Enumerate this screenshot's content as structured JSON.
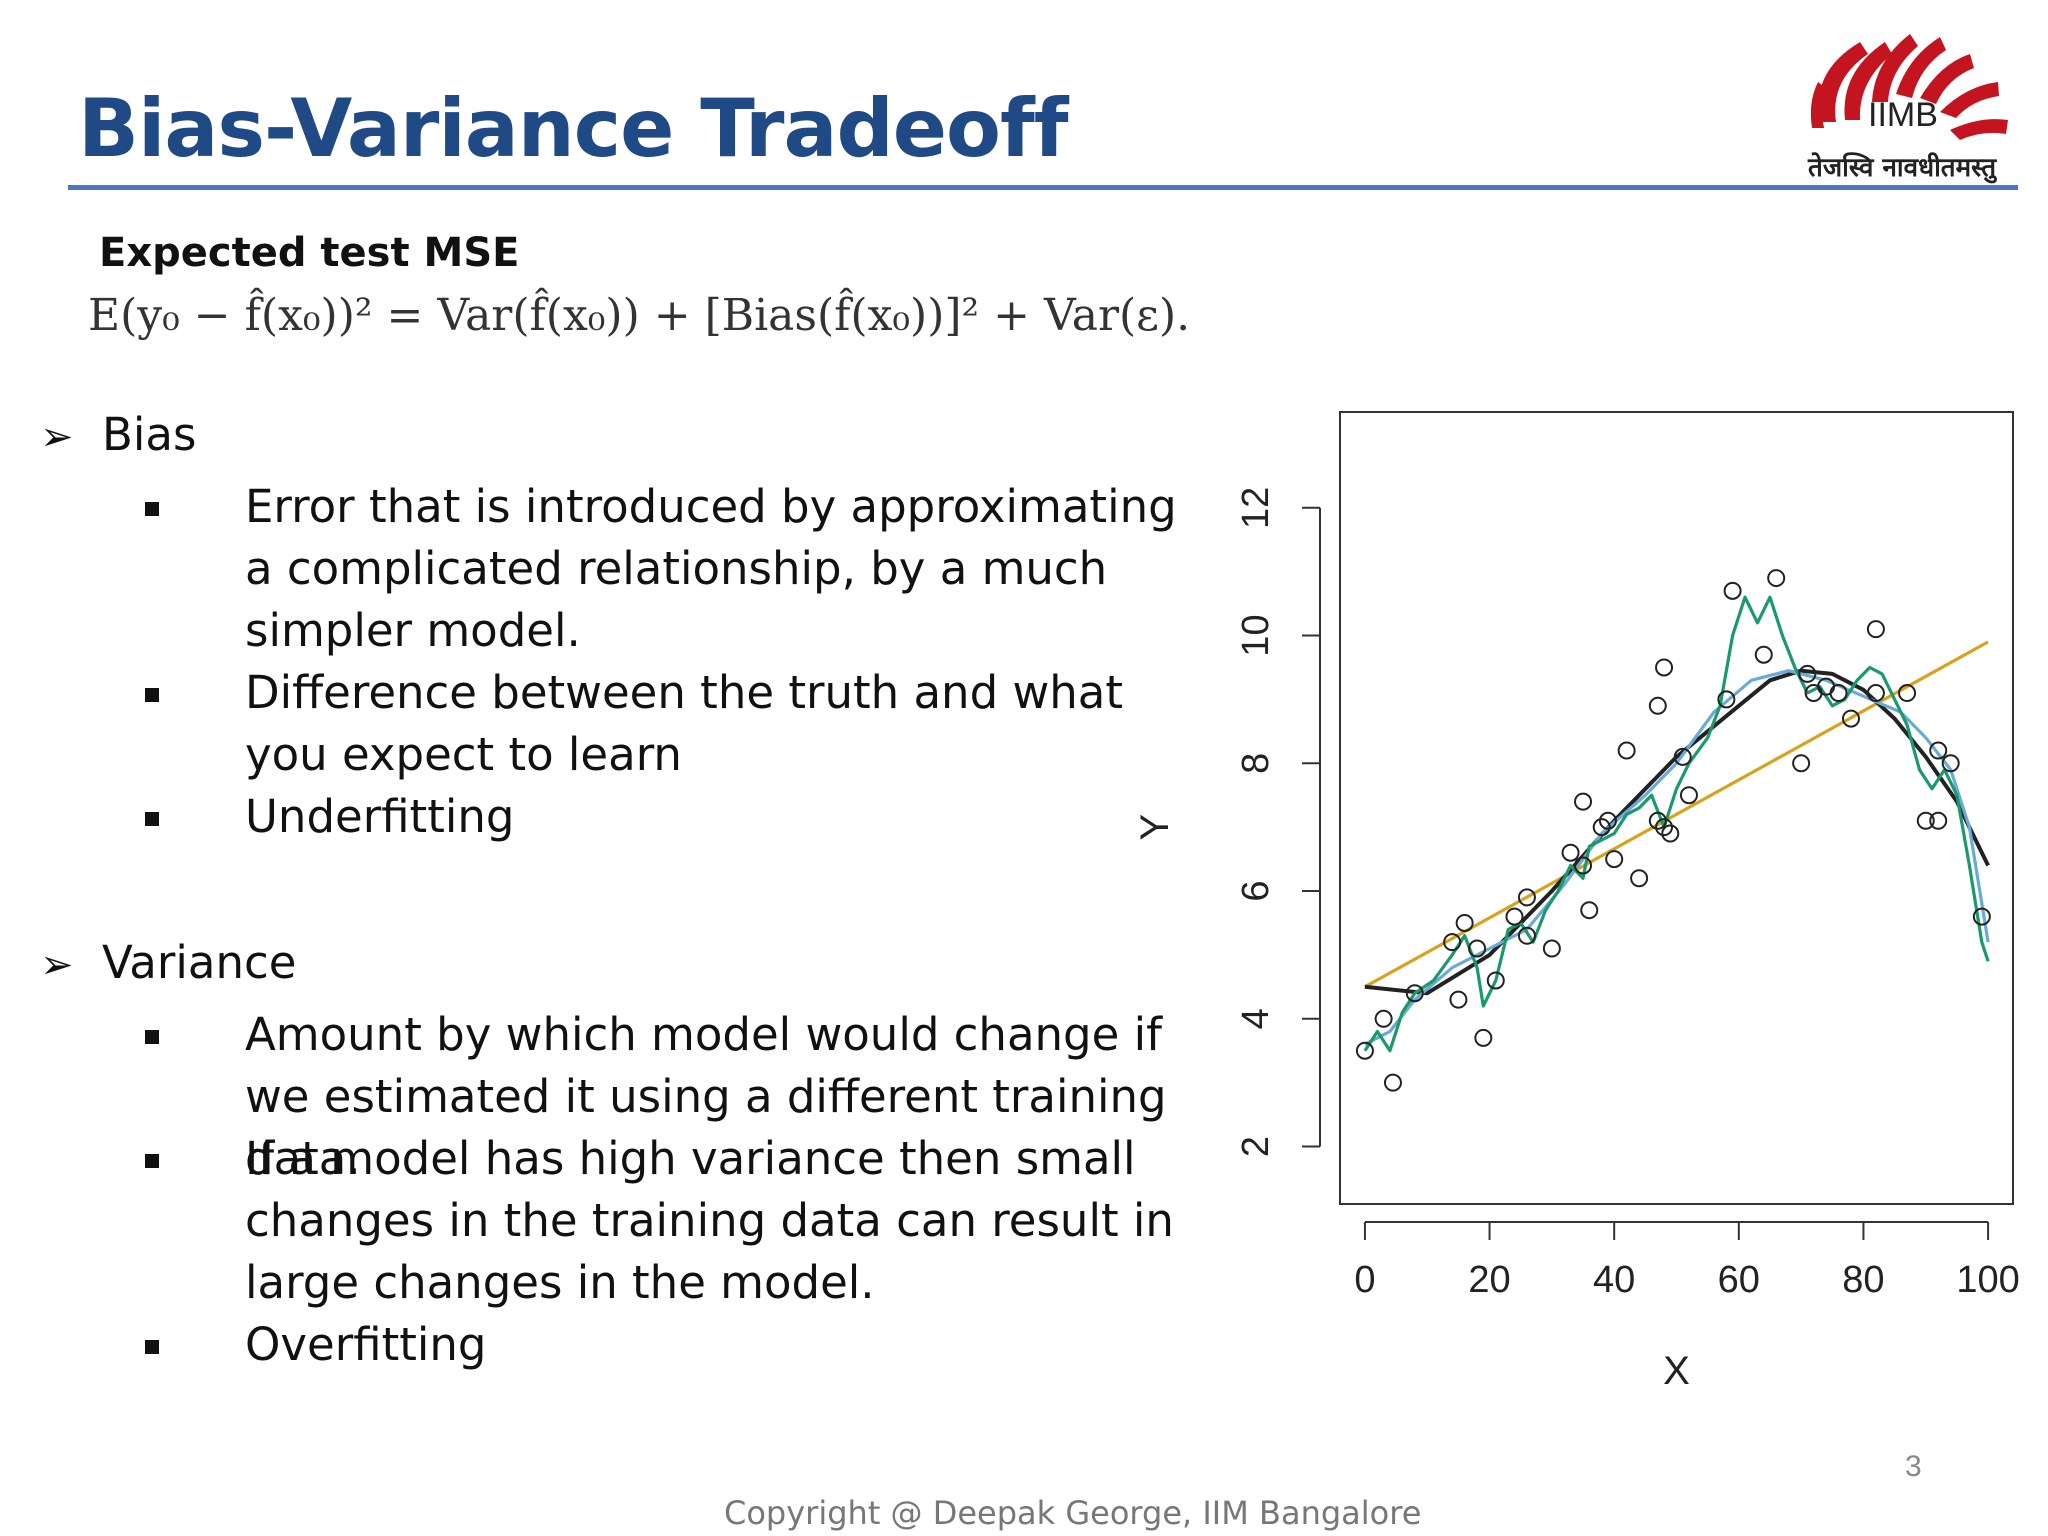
{
  "title": "Bias-Variance Tradeoff",
  "logo": {
    "text": "IIMB",
    "motto": "तेजस्वि नावधीतमस्तु"
  },
  "subheading": "Expected test MSE",
  "formula": "E(y₀ − f̂(x₀))² = Var(f̂(x₀)) + [Bias(f̂(x₀))]² + Var(ε).",
  "sections": [
    {
      "heading": "Bias",
      "items": [
        "Error that is introduced by approximating a complicated relationship, by a much simpler model.",
        "Difference between the truth and what you expect to learn",
        "Underfitting"
      ]
    },
    {
      "heading": "Variance",
      "items": [
        "Amount by which model would change if we estimated it using a different training data.",
        "If a model has high variance then small changes in the training data can result in large changes in the model.",
        "Overfitting"
      ]
    }
  ],
  "chart_data": {
    "type": "scatter",
    "xlabel": "X",
    "ylabel": "Y",
    "xlim": [
      -4,
      104
    ],
    "ylim": [
      1.1,
      13.5
    ],
    "xticks": [
      0,
      20,
      40,
      60,
      80,
      100
    ],
    "yticks": [
      2,
      4,
      6,
      8,
      10,
      12
    ],
    "points": [
      [
        0,
        3.5
      ],
      [
        3,
        4.0
      ],
      [
        4.5,
        3.0
      ],
      [
        8,
        4.4
      ],
      [
        14,
        5.2
      ],
      [
        15,
        4.3
      ],
      [
        16,
        5.5
      ],
      [
        18,
        5.1
      ],
      [
        19,
        3.7
      ],
      [
        21,
        4.6
      ],
      [
        24,
        5.6
      ],
      [
        26,
        5.3
      ],
      [
        26,
        5.9
      ],
      [
        30,
        5.1
      ],
      [
        33,
        6.6
      ],
      [
        35,
        6.4
      ],
      [
        35,
        7.4
      ],
      [
        36,
        5.7
      ],
      [
        38,
        7.0
      ],
      [
        39,
        7.1
      ],
      [
        40,
        6.5
      ],
      [
        42,
        8.2
      ],
      [
        44,
        6.2
      ],
      [
        47,
        8.9
      ],
      [
        47,
        7.1
      ],
      [
        48,
        7.0
      ],
      [
        48,
        9.5
      ],
      [
        49,
        6.9
      ],
      [
        51,
        8.1
      ],
      [
        52,
        7.5
      ],
      [
        58,
        9.0
      ],
      [
        59,
        10.7
      ],
      [
        64,
        9.7
      ],
      [
        66,
        10.9
      ],
      [
        70,
        8.0
      ],
      [
        71,
        9.4
      ],
      [
        72,
        9.1
      ],
      [
        74,
        9.2
      ],
      [
        76,
        9.1
      ],
      [
        78,
        8.7
      ],
      [
        82,
        10.1
      ],
      [
        82,
        9.1
      ],
      [
        87,
        9.1
      ],
      [
        90,
        7.1
      ],
      [
        92,
        8.2
      ],
      [
        92,
        7.1
      ],
      [
        94,
        8.0
      ],
      [
        99,
        5.6
      ]
    ],
    "series": [
      {
        "color": "#d9a21b",
        "values": [
          [
            0,
            4.5
          ],
          [
            100,
            9.9
          ]
        ]
      },
      {
        "color": "#222222",
        "values": [
          [
            0,
            4.5
          ],
          [
            10,
            4.4
          ],
          [
            20,
            5.0
          ],
          [
            30,
            6.0
          ],
          [
            40,
            7.1
          ],
          [
            50,
            8.1
          ],
          [
            60,
            8.9
          ],
          [
            65,
            9.3
          ],
          [
            70,
            9.45
          ],
          [
            75,
            9.4
          ],
          [
            80,
            9.15
          ],
          [
            85,
            8.7
          ],
          [
            90,
            8.1
          ],
          [
            95,
            7.4
          ],
          [
            100,
            6.4
          ]
        ]
      },
      {
        "color": "#6aaad6",
        "values": [
          [
            0,
            3.6
          ],
          [
            4,
            3.8
          ],
          [
            8,
            4.3
          ],
          [
            14,
            4.8
          ],
          [
            20,
            5.1
          ],
          [
            26,
            5.4
          ],
          [
            32,
            6.1
          ],
          [
            38,
            6.9
          ],
          [
            45,
            7.5
          ],
          [
            50,
            8.0
          ],
          [
            56,
            8.8
          ],
          [
            62,
            9.3
          ],
          [
            68,
            9.45
          ],
          [
            74,
            9.3
          ],
          [
            80,
            9.05
          ],
          [
            86,
            8.8
          ],
          [
            90,
            8.4
          ],
          [
            94,
            7.9
          ],
          [
            97,
            7.0
          ],
          [
            100,
            5.2
          ]
        ]
      },
      {
        "color": "#1a9a6c",
        "values": [
          [
            0,
            3.5
          ],
          [
            2,
            3.8
          ],
          [
            4,
            3.5
          ],
          [
            6,
            4.1
          ],
          [
            8,
            4.4
          ],
          [
            11,
            4.6
          ],
          [
            14,
            5.0
          ],
          [
            16,
            5.3
          ],
          [
            18,
            4.8
          ],
          [
            19,
            4.2
          ],
          [
            21,
            4.6
          ],
          [
            23,
            5.4
          ],
          [
            25,
            5.5
          ],
          [
            27,
            5.2
          ],
          [
            29,
            5.7
          ],
          [
            31,
            6.0
          ],
          [
            33,
            6.4
          ],
          [
            35,
            6.2
          ],
          [
            36,
            6.7
          ],
          [
            38,
            6.8
          ],
          [
            40,
            6.9
          ],
          [
            42,
            7.2
          ],
          [
            44,
            7.3
          ],
          [
            46,
            7.5
          ],
          [
            48,
            7.0
          ],
          [
            50,
            7.6
          ],
          [
            52,
            8.0
          ],
          [
            55,
            8.4
          ],
          [
            57,
            8.9
          ],
          [
            59,
            10.0
          ],
          [
            61,
            10.6
          ],
          [
            63,
            10.2
          ],
          [
            65,
            10.6
          ],
          [
            67,
            10.0
          ],
          [
            69,
            9.5
          ],
          [
            71,
            9.1
          ],
          [
            73,
            9.2
          ],
          [
            75,
            8.9
          ],
          [
            77,
            9.0
          ],
          [
            79,
            9.3
          ],
          [
            81,
            9.5
          ],
          [
            83,
            9.4
          ],
          [
            85,
            9.0
          ],
          [
            87,
            8.6
          ],
          [
            89,
            7.9
          ],
          [
            91,
            7.6
          ],
          [
            93,
            7.9
          ],
          [
            95,
            7.5
          ],
          [
            97,
            6.4
          ],
          [
            99,
            5.2
          ],
          [
            100,
            4.9
          ]
        ]
      }
    ]
  },
  "page_number": "3",
  "copyright": "Copyright @ Deepak George, IIM Bangalore"
}
